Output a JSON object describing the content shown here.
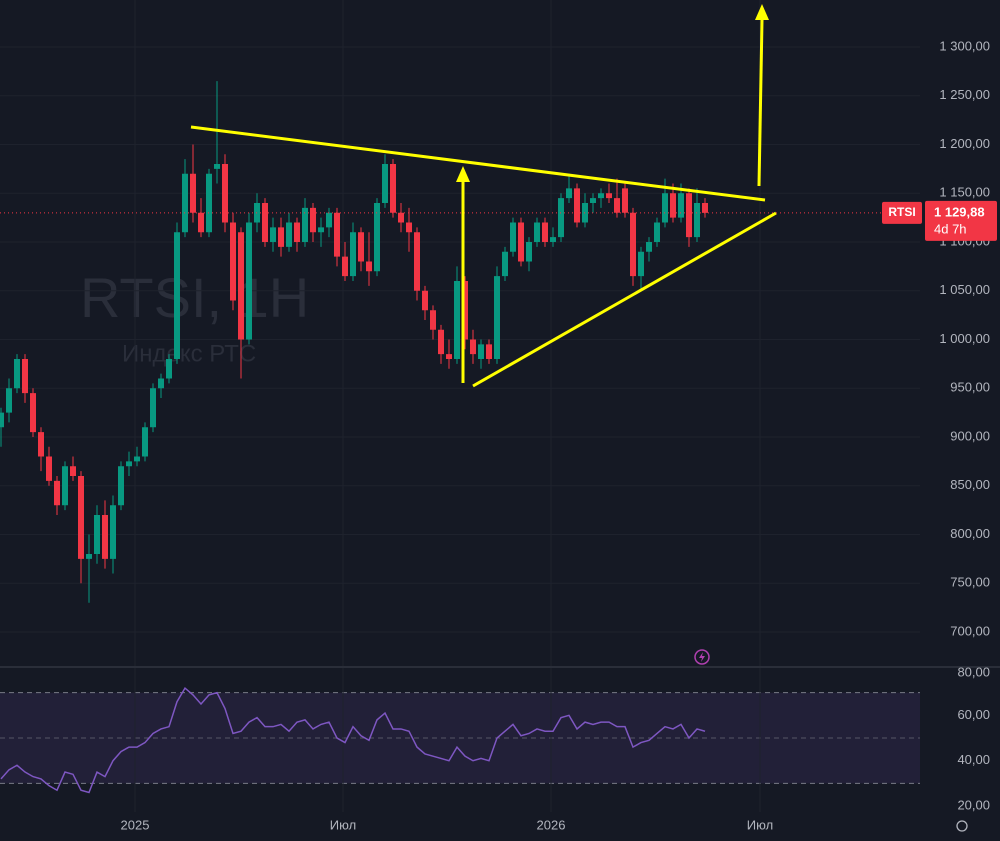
{
  "chart_data": [
    {
      "type": "candlestick",
      "title": "RTSI, 1Н",
      "subtitle": "Индекс РТС",
      "x": [
        0,
        1,
        2,
        3,
        4,
        5,
        6,
        7,
        8,
        9,
        10,
        11,
        12,
        13,
        14,
        15,
        16,
        17,
        18,
        19,
        20,
        21,
        22,
        23,
        24,
        25,
        26,
        27,
        28,
        29,
        30,
        31,
        32,
        33,
        34,
        35,
        36,
        37,
        38,
        39,
        40,
        41,
        42,
        43,
        44,
        45,
        46,
        47,
        48,
        49,
        50,
        51,
        52,
        53,
        54,
        55,
        56,
        57,
        58,
        59,
        60,
        61,
        62,
        63,
        64,
        65,
        66,
        67,
        68,
        69,
        70,
        71,
        72,
        73,
        74,
        75,
        76,
        77,
        78,
        79,
        80,
        81,
        82,
        83,
        84,
        85,
        86,
        87,
        88
      ],
      "open": [
        910,
        925,
        950,
        980,
        945,
        905,
        880,
        855,
        830,
        870,
        860,
        775,
        780,
        820,
        775,
        830,
        870,
        875,
        880,
        910,
        950,
        960,
        980,
        1110,
        1170,
        1130,
        1110,
        1175,
        1180,
        1120,
        1110,
        1000,
        1120,
        1140,
        1100,
        1115,
        1095,
        1120,
        1100,
        1135,
        1110,
        1115,
        1130,
        1085,
        1065,
        1110,
        1080,
        1070,
        1140,
        1180,
        1130,
        1120,
        1110,
        1050,
        1030,
        1010,
        985,
        980,
        1060,
        1000,
        980,
        995,
        980,
        1065,
        1090,
        1120,
        1080,
        1100,
        1120,
        1100,
        1105,
        1145,
        1155,
        1120,
        1140,
        1145,
        1150,
        1145,
        1155,
        1130,
        1065,
        1090,
        1100,
        1120,
        1150,
        1125,
        1150,
        1105,
        1140
      ],
      "high": [
        930,
        960,
        985,
        985,
        950,
        910,
        890,
        860,
        875,
        880,
        865,
        800,
        830,
        835,
        840,
        875,
        885,
        890,
        915,
        955,
        965,
        985,
        1120,
        1185,
        1200,
        1145,
        1175,
        1265,
        1190,
        1130,
        1115,
        1130,
        1150,
        1145,
        1125,
        1125,
        1130,
        1125,
        1145,
        1140,
        1125,
        1135,
        1135,
        1100,
        1120,
        1115,
        1110,
        1145,
        1190,
        1185,
        1140,
        1135,
        1115,
        1055,
        1035,
        1015,
        1000,
        1075,
        1065,
        1010,
        1000,
        1000,
        1075,
        1095,
        1125,
        1125,
        1105,
        1125,
        1125,
        1115,
        1150,
        1170,
        1160,
        1150,
        1150,
        1155,
        1160,
        1165,
        1160,
        1135,
        1095,
        1105,
        1125,
        1165,
        1160,
        1160,
        1155,
        1155,
        1145
      ],
      "low": [
        890,
        915,
        945,
        935,
        900,
        865,
        850,
        820,
        825,
        855,
        750,
        730,
        770,
        765,
        760,
        825,
        860,
        870,
        875,
        905,
        940,
        955,
        975,
        1105,
        1120,
        1105,
        1105,
        1160,
        1110,
        1030,
        960,
        995,
        1110,
        1095,
        1090,
        1085,
        1090,
        1090,
        1095,
        1100,
        1095,
        1105,
        1075,
        1060,
        1060,
        1070,
        1055,
        1065,
        1135,
        1125,
        1110,
        1090,
        1040,
        1020,
        1000,
        975,
        970,
        975,
        990,
        975,
        970,
        975,
        975,
        1060,
        1085,
        1075,
        1070,
        1095,
        1095,
        1095,
        1100,
        1140,
        1115,
        1115,
        1130,
        1135,
        1140,
        1125,
        1125,
        1055,
        1050,
        1080,
        1095,
        1115,
        1120,
        1120,
        1095,
        1100,
        1125
      ],
      "close": [
        925,
        950,
        980,
        945,
        905,
        880,
        855,
        830,
        870,
        860,
        775,
        780,
        820,
        775,
        830,
        870,
        875,
        880,
        910,
        950,
        960,
        980,
        1110,
        1170,
        1130,
        1110,
        1170,
        1180,
        1120,
        1040,
        1000,
        1120,
        1140,
        1100,
        1115,
        1095,
        1120,
        1100,
        1135,
        1110,
        1115,
        1130,
        1085,
        1065,
        1110,
        1080,
        1070,
        1140,
        1180,
        1130,
        1120,
        1110,
        1050,
        1030,
        1010,
        985,
        980,
        1060,
        1000,
        985,
        995,
        980,
        1065,
        1090,
        1120,
        1080,
        1100,
        1120,
        1100,
        1105,
        1145,
        1155,
        1120,
        1140,
        1145,
        1150,
        1145,
        1130,
        1130,
        1065,
        1090,
        1100,
        1120,
        1150,
        1125,
        1150,
        1105,
        1140,
        1129.88
      ],
      "up_color": "#089981",
      "down_color": "#f23645",
      "xlim": [
        -0.125,
        114.875
      ],
      "xticks": [
        {
          "value": 16.75,
          "label": "2025"
        },
        {
          "value": 42.75,
          "label": "Июл"
        },
        {
          "value": 68.75,
          "label": "2026"
        },
        {
          "value": 94.875,
          "label": "Июл"
        }
      ],
      "ylim": [
        664.1,
        1348.2
      ],
      "yticks": [
        {
          "value": 700,
          "label": "700,00"
        },
        {
          "value": 750,
          "label": "750,00"
        },
        {
          "value": 800,
          "label": "800,00"
        },
        {
          "value": 850,
          "label": "850,00"
        },
        {
          "value": 900,
          "label": "900,00"
        },
        {
          "value": 950,
          "label": "950,00"
        },
        {
          "value": 1000,
          "label": "1 000,00"
        },
        {
          "value": 1050,
          "label": "1 050,00"
        },
        {
          "value": 1100,
          "label": "1 100,00"
        },
        {
          "value": 1150,
          "label": "1 150,00"
        },
        {
          "value": 1200,
          "label": "1 200,00"
        },
        {
          "value": 1250,
          "label": "1 250,00"
        },
        {
          "value": 1300,
          "label": "1 300,00"
        }
      ],
      "grid": true,
      "last_price": {
        "name": "RTSI",
        "value": 1129.88,
        "label": "1 129,88",
        "countdown": "4d 7h"
      }
    },
    {
      "type": "line",
      "color": "#7e57c2",
      "values": [
        32,
        36,
        38,
        35,
        33,
        32,
        29,
        27,
        35,
        34,
        27,
        26,
        35,
        33,
        40,
        44,
        46,
        46,
        48,
        52,
        54,
        55,
        66,
        72,
        69,
        65,
        69,
        70,
        63,
        52,
        53,
        57,
        59,
        55,
        55,
        56,
        53,
        57,
        58,
        54,
        56,
        57,
        50,
        48,
        55,
        51,
        49,
        58,
        61,
        54,
        54,
        53,
        46,
        43,
        42,
        41,
        40,
        46,
        42,
        40,
        41,
        40,
        50,
        53,
        56,
        51,
        52,
        54,
        53,
        53,
        59,
        60,
        54,
        57,
        56,
        57,
        57,
        55,
        55,
        46,
        48,
        49,
        52,
        55,
        54,
        56,
        50,
        54,
        53
      ],
      "ylim": [
        17.4,
        81.3
      ],
      "yticks": [
        {
          "value": 20,
          "label": "20,00"
        },
        {
          "value": 40,
          "label": "40,00"
        },
        {
          "value": 60,
          "label": "60,00"
        },
        {
          "value": 80,
          "label": "80,00"
        }
      ],
      "bands": [
        30,
        70
      ],
      "midline": 50
    }
  ]
}
